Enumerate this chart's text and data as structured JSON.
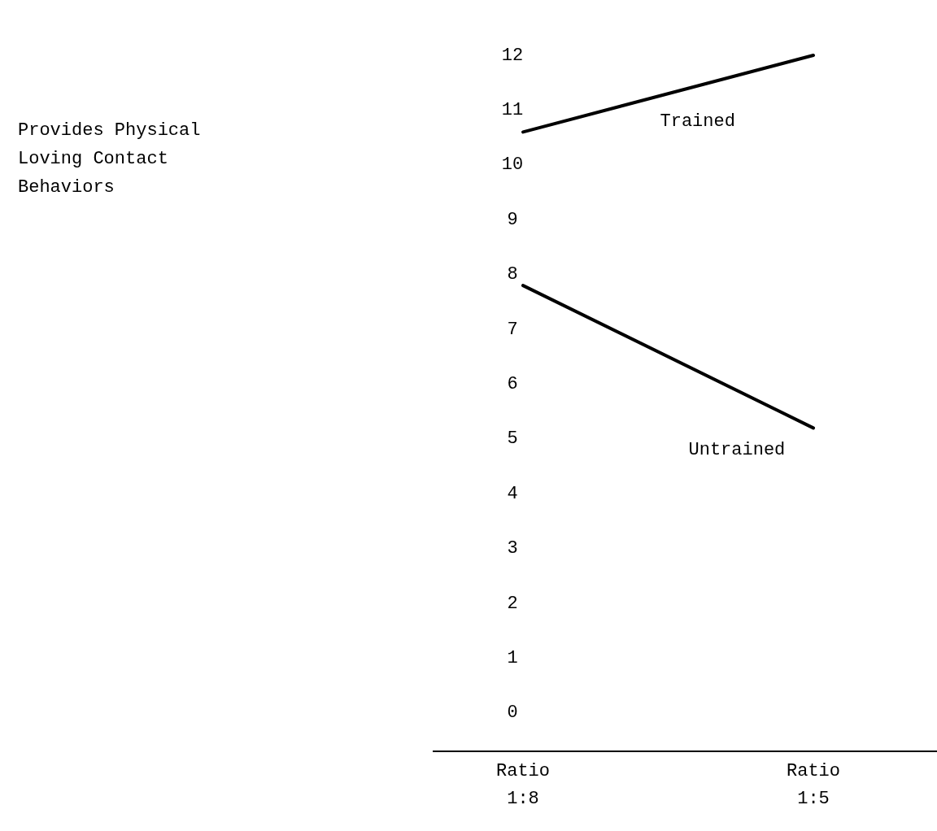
{
  "chart_data": {
    "type": "line",
    "annotations": [
      "Provides Physical Loving Contact Behaviors"
    ],
    "categories": [
      "Ratio\n1:8",
      "Ratio\n1:5"
    ],
    "series": [
      {
        "name": "Trained",
        "color": "#000000",
        "values": [
          10.6,
          12.0
        ]
      },
      {
        "name": "Untrained",
        "color": "#000000",
        "values": [
          7.8,
          5.2
        ]
      }
    ],
    "ylim": [
      -0.7,
      12
    ],
    "yticks": [
      0,
      1,
      2,
      3,
      4,
      5,
      6,
      7,
      8,
      9,
      10,
      11,
      12
    ],
    "grid": false,
    "marker": "none",
    "line_style": "solid"
  }
}
